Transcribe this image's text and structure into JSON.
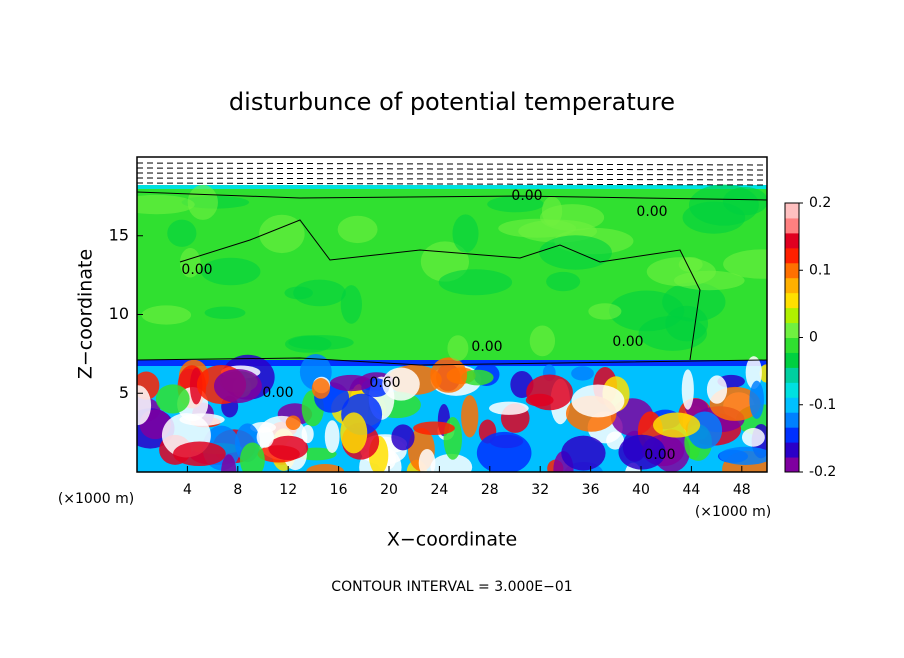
{
  "chart_data": {
    "type": "contour",
    "title": "disturbunce of potential temperature",
    "x_label": "X−coordinate",
    "y_label": "Z−coordinate",
    "x_unit_left": "(×1000 m)",
    "x_unit_right": "(×1000 m)",
    "footer": "CONTOUR INTERVAL = 3.000E−01",
    "xlim": [
      0,
      50
    ],
    "xticks": [
      4,
      8,
      12,
      16,
      20,
      24,
      28,
      32,
      36,
      40,
      44,
      48
    ],
    "ylim": [
      0,
      20
    ],
    "yticks": [
      5,
      10,
      15
    ],
    "clim": [
      -0.2,
      0.2
    ],
    "cticks": [
      -0.2,
      -0.1,
      0,
      0.1,
      0.2
    ],
    "colormap": [
      "#7f00a0",
      "#2a00c8",
      "#0030ff",
      "#0080ff",
      "#00c0ff",
      "#00e0e0",
      "#00d0a0",
      "#00d040",
      "#30e030",
      "#70f040",
      "#b0f000",
      "#ffe000",
      "#ffb000",
      "#ff7000",
      "#ff2000",
      "#e00020",
      "#ff8080",
      "#ffc0c0"
    ],
    "contour_labels": [
      "0.00",
      "0.00",
      "0.00",
      "0.00",
      "0.60",
      "0.00",
      "0.00",
      "0.00"
    ]
  }
}
